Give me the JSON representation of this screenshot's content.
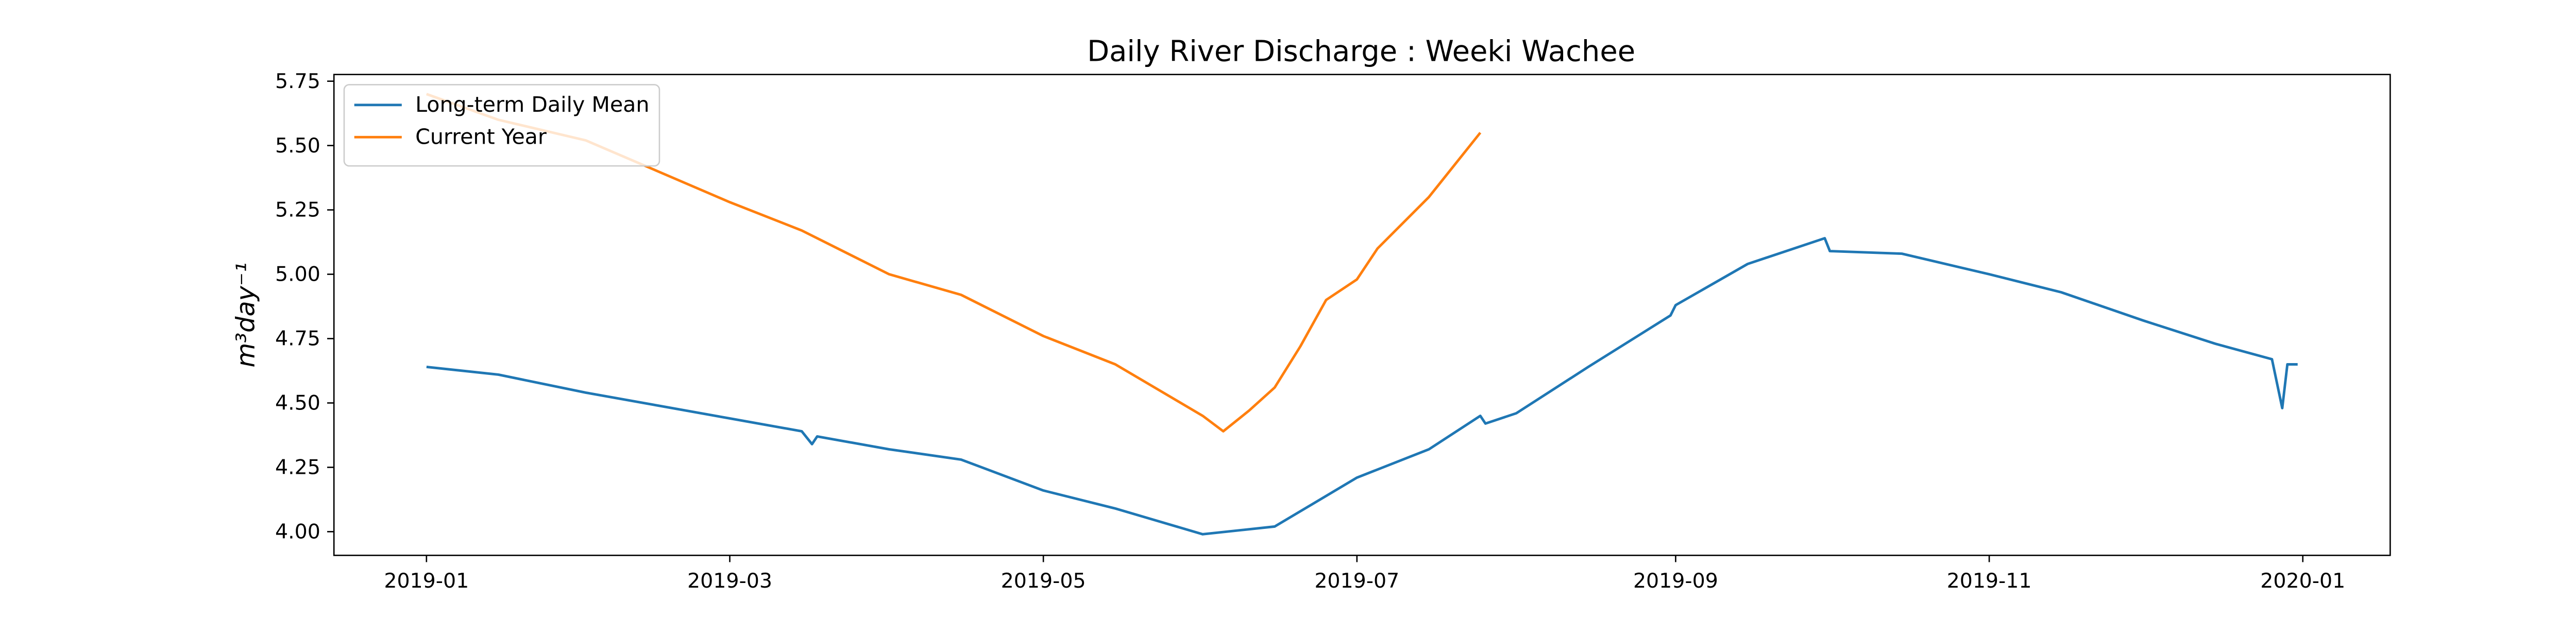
{
  "chart_data": {
    "type": "line",
    "title": "Daily River Discharge : Weeki Wachee",
    "y_label": "m³day⁻¹",
    "xlim": [
      "2018-12-14",
      "2020-01-18"
    ],
    "xticks": [
      {
        "value": "2019-01-01",
        "label": "2019-01"
      },
      {
        "value": "2019-03-01",
        "label": "2019-03"
      },
      {
        "value": "2019-05-01",
        "label": "2019-05"
      },
      {
        "value": "2019-07-01",
        "label": "2019-07"
      },
      {
        "value": "2019-09-01",
        "label": "2019-09"
      },
      {
        "value": "2019-11-01",
        "label": "2019-11"
      },
      {
        "value": "2020-01-01",
        "label": "2020-01"
      }
    ],
    "ylim": [
      3.908,
      5.776
    ],
    "yticks": [
      {
        "value": 4,
        "label": "4.00"
      },
      {
        "value": 4.25,
        "label": "4.25"
      },
      {
        "value": 4.5,
        "label": "4.50"
      },
      {
        "value": 4.75,
        "label": "4.75"
      },
      {
        "value": 5,
        "label": "5.00"
      },
      {
        "value": 5.25,
        "label": "5.25"
      },
      {
        "value": 5.5,
        "label": "5.50"
      },
      {
        "value": 5.75,
        "label": "5.75"
      }
    ],
    "legend": "upper left",
    "series": [
      {
        "name": "Long-term Daily Mean",
        "color": "#1f77b4",
        "x": [
          "2019-01-01",
          "2019-01-15",
          "2019-02-01",
          "2019-02-15",
          "2019-03-01",
          "2019-03-15",
          "2019-03-17",
          "2019-03-18",
          "2019-04-01",
          "2019-04-15",
          "2019-05-01",
          "2019-05-15",
          "2019-06-01",
          "2019-06-15",
          "2019-07-01",
          "2019-07-15",
          "2019-07-25",
          "2019-07-26",
          "2019-08-01",
          "2019-08-15",
          "2019-08-31",
          "2019-09-01",
          "2019-09-15",
          "2019-09-30",
          "2019-10-01",
          "2019-10-15",
          "2019-11-01",
          "2019-11-15",
          "2019-12-01",
          "2019-12-15",
          "2019-12-26",
          "2019-12-28",
          "2019-12-29",
          "2019-12-31"
        ],
        "values": [
          4.64,
          4.61,
          4.54,
          4.49,
          4.44,
          4.39,
          4.34,
          4.37,
          4.32,
          4.28,
          4.16,
          4.09,
          3.99,
          4.02,
          4.21,
          4.32,
          4.45,
          4.42,
          4.46,
          4.64,
          4.84,
          4.88,
          5.04,
          5.14,
          5.09,
          5.08,
          5.0,
          4.93,
          4.82,
          4.73,
          4.67,
          4.48,
          4.65,
          4.65
        ]
      },
      {
        "name": "Current Year",
        "color": "#ff7f0e",
        "x": [
          "2019-01-01",
          "2019-01-15",
          "2019-02-01",
          "2019-02-15",
          "2019-03-01",
          "2019-03-15",
          "2019-04-01",
          "2019-04-15",
          "2019-05-01",
          "2019-05-15",
          "2019-06-01",
          "2019-06-05",
          "2019-06-10",
          "2019-06-15",
          "2019-06-20",
          "2019-06-25",
          "2019-07-01",
          "2019-07-05",
          "2019-07-15",
          "2019-07-25"
        ],
        "values": [
          5.7,
          5.6,
          5.52,
          5.4,
          5.28,
          5.17,
          5.0,
          4.92,
          4.76,
          4.65,
          4.45,
          4.39,
          4.47,
          4.56,
          4.72,
          4.9,
          4.98,
          5.1,
          5.3,
          5.55
        ]
      }
    ]
  }
}
